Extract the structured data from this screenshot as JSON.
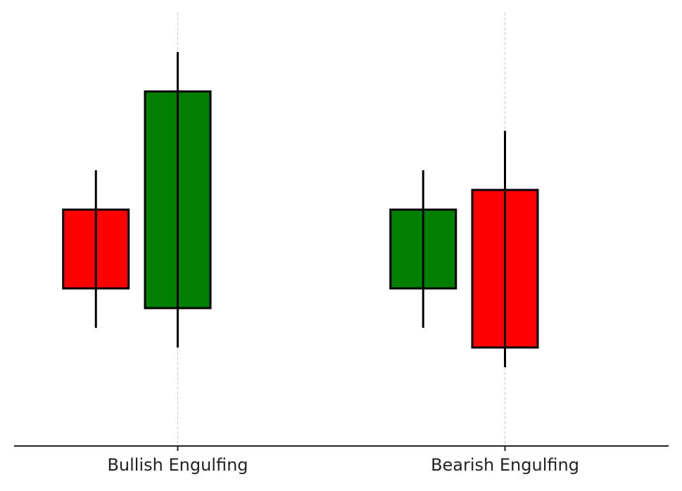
{
  "chart_data": {
    "type": "candlestick",
    "x": [
      0.5,
      1,
      2.5,
      3
    ],
    "open": [
      12,
      7,
      8,
      13
    ],
    "high": [
      14,
      20,
      14,
      16
    ],
    "low": [
      6,
      5,
      6,
      4
    ],
    "close": [
      8,
      18,
      12,
      5
    ],
    "up_color": "#008000",
    "down_color": "#ff0000",
    "xlim": [
      0,
      4
    ],
    "xticks": [
      {
        "value": 1,
        "label": "Bullish Engulfing"
      },
      {
        "value": 3,
        "label": "Bearish Engulfing"
      }
    ],
    "ylim": [
      0,
      22
    ],
    "grid": true
  }
}
